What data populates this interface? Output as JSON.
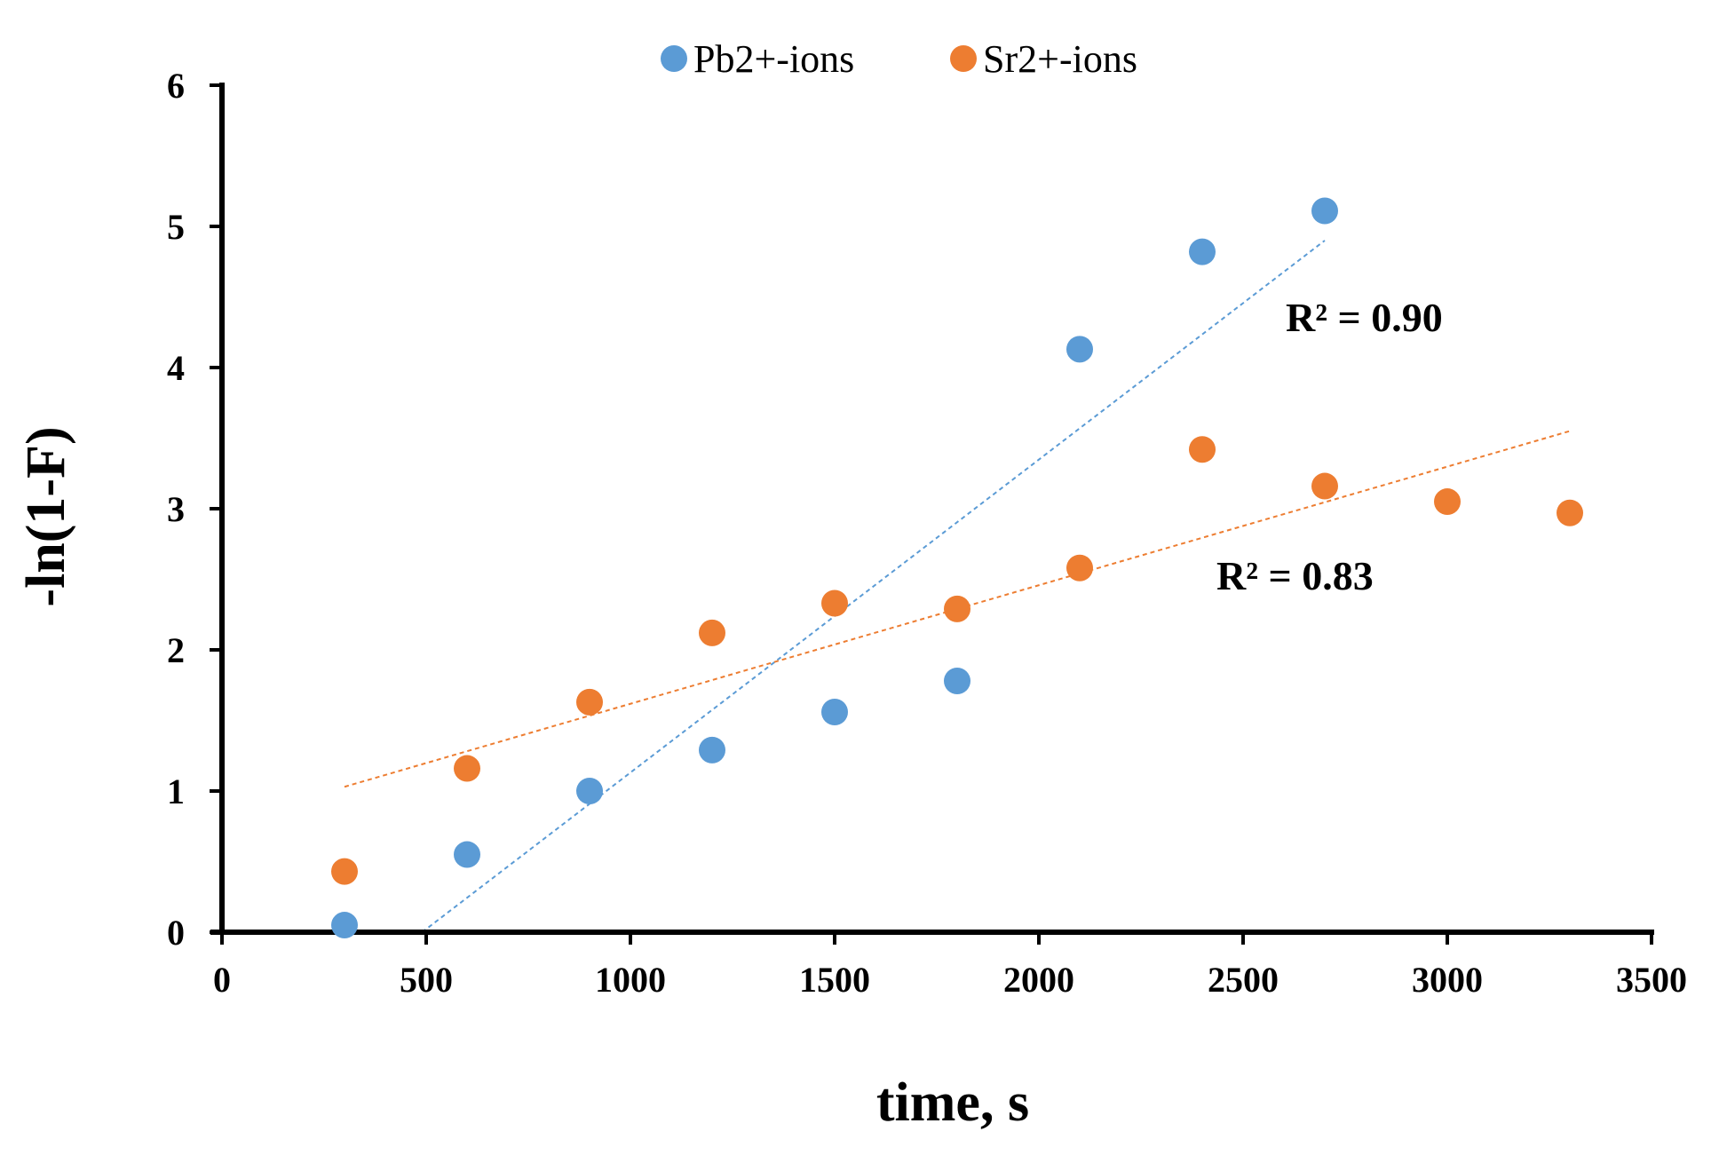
{
  "chart_data": {
    "type": "scatter",
    "title": "",
    "xlabel": "time, s",
    "ylabel": "-ln(1-F)",
    "xlim": [
      0,
      3500
    ],
    "ylim": [
      0,
      6
    ],
    "xticks": [
      0,
      500,
      1000,
      1500,
      2000,
      2500,
      3000,
      3500
    ],
    "yticks": [
      0,
      1,
      2,
      3,
      4,
      5,
      6
    ],
    "xtick_labels": [
      "0",
      "500",
      "1000",
      "1500",
      "2000",
      "2500",
      "3000",
      "3500"
    ],
    "ytick_labels": [
      "0",
      "1",
      "2",
      "3",
      "4",
      "5",
      "6"
    ],
    "grid": false,
    "legend_position": "top-center",
    "series": [
      {
        "name": "Pb2+-ions",
        "color": "#5B9BD5",
        "x": [
          300,
          600,
          900,
          1200,
          1500,
          1800,
          2100,
          2400,
          2700
        ],
        "y": [
          0.05,
          0.55,
          1.0,
          1.29,
          1.56,
          1.78,
          4.13,
          4.82,
          5.11
        ],
        "trendline": {
          "x": [
            490,
            2700
          ],
          "y": [
            0.0,
            4.9
          ],
          "r2_label": "R² = 0.90"
        }
      },
      {
        "name": "Sr2+-ions",
        "color": "#ED7D31",
        "x": [
          300,
          600,
          900,
          1200,
          1500,
          1800,
          2100,
          2400,
          2700,
          3000,
          3300
        ],
        "y": [
          0.43,
          1.16,
          1.63,
          2.12,
          2.33,
          2.29,
          2.58,
          3.42,
          3.16,
          3.05,
          2.97
        ],
        "trendline": {
          "x": [
            300,
            3300
          ],
          "y": [
            1.03,
            3.55
          ],
          "r2_label": "R² = 0.83"
        }
      }
    ]
  }
}
